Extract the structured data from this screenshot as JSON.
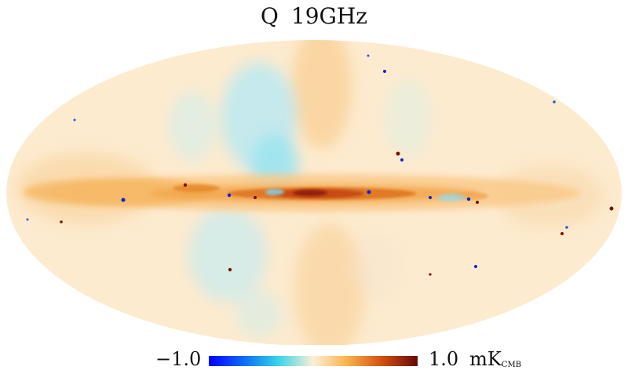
{
  "title": {
    "stokes": "Q",
    "frequency": "19GHz"
  },
  "colorbar": {
    "min_label": "−1.0",
    "max_label": "1.0",
    "unit_main": "mK",
    "unit_sub": "CMB",
    "colormap": "planck-diverging (blue-cyan-cream-orange-darkred)",
    "vmin": -1.0,
    "vmax": 1.0
  },
  "map": {
    "projection": "mollweide",
    "background_color": "#fdebcf",
    "plane_color": "#f6b253",
    "plane_core_color": "#c54a12",
    "spur_color": "#9fe3f1",
    "strong_positive_color": "#7a1206",
    "strong_negative_color": "#0b22d6"
  }
}
